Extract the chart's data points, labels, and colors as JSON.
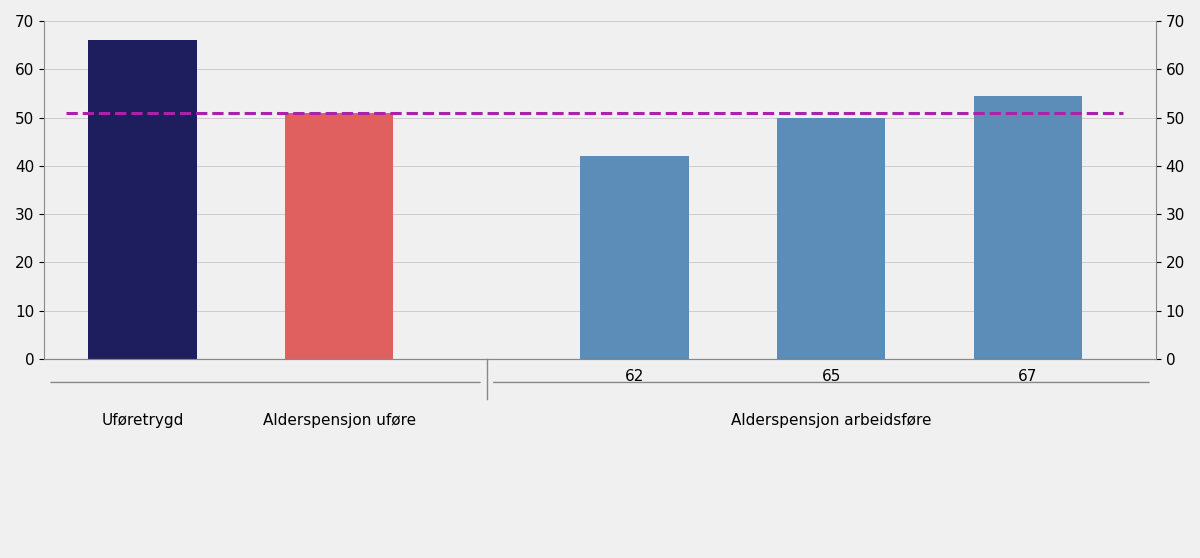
{
  "categories": [
    "Uføretrygd",
    "Alderspensjon uføre",
    "62",
    "65",
    "67"
  ],
  "values": [
    66.0,
    51.0,
    42.0,
    50.0,
    54.5
  ],
  "bar_colors": [
    "#1e1e5e",
    "#e06060",
    "#5b8db8",
    "#5b8db8",
    "#5b8db8"
  ],
  "dashed_line_y": 51.0,
  "dashed_line_color": "#aa22aa",
  "ylim": [
    0,
    70
  ],
  "yticks": [
    0,
    10,
    20,
    30,
    40,
    50,
    60,
    70
  ],
  "group1_labels": [
    "Uføretrygd",
    "Alderspensjon uføre"
  ],
  "group2_label": "Alderspensjon arbeidsføre",
  "group2_sublabels": [
    "62",
    "65",
    "67"
  ],
  "background_color": "#f0f0f0",
  "bar_width": 0.55,
  "figsize": [
    12.0,
    5.58
  ],
  "dpi": 100
}
